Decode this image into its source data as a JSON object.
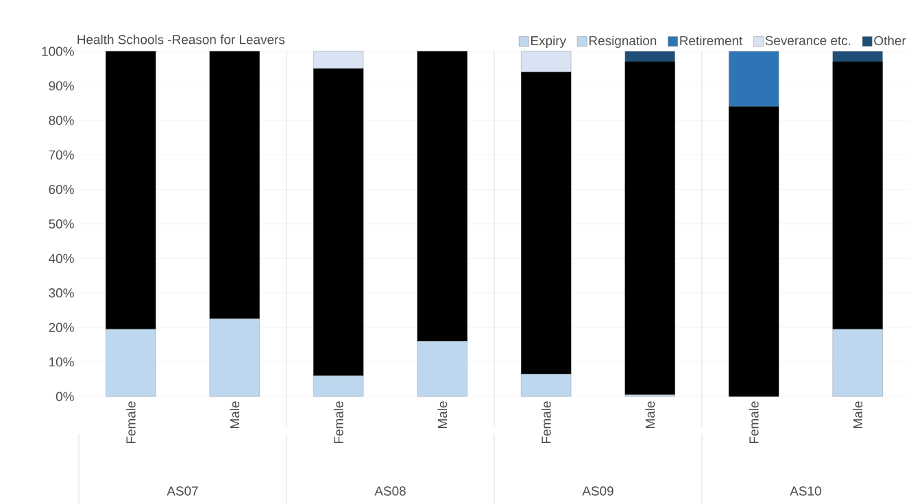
{
  "chart_data": {
    "type": "bar",
    "stacked": true,
    "title": "Health Schools -Reason for Leavers",
    "categories": [
      "Female",
      "Male",
      "Female",
      "Male",
      "Female",
      "Male",
      "Female",
      "Male"
    ],
    "annotations": [
      "AS07",
      "AS08",
      "AS09",
      "AS10"
    ],
    "series": [
      {
        "name": "Expiry",
        "color": "#bdd7ee",
        "values": [
          19.5,
          22.5,
          6,
          16,
          6.5,
          0.5,
          null,
          null
        ]
      },
      {
        "name": "Resignation",
        "color": "#bdd7ee",
        "values": [
          null,
          null,
          null,
          null,
          null,
          null,
          null,
          19.5
        ]
      },
      {
        "color": "#000000",
        "values": [
          80.5,
          77.5,
          89,
          84,
          87.5,
          96.5,
          84,
          77.5
        ]
      },
      {
        "name": "Retirement",
        "color": "#2e75b6",
        "values": [
          null,
          null,
          null,
          null,
          null,
          null,
          16,
          null
        ]
      },
      {
        "name": "Severance etc.",
        "color": "#dae3f3",
        "values": [
          null,
          null,
          5,
          null,
          6,
          null,
          null,
          null
        ]
      },
      {
        "name": "Other",
        "color": "#1f4e79",
        "values": [
          null,
          null,
          null,
          null,
          null,
          3,
          null,
          3
        ]
      }
    ],
    "ylim": [
      0,
      100
    ],
    "yticks": [
      {
        "value": 0,
        "label": "0%"
      },
      {
        "value": 10,
        "label": "10%"
      },
      {
        "value": 20,
        "label": "20%"
      },
      {
        "value": 30,
        "label": "30%"
      },
      {
        "value": 40,
        "label": "40%"
      },
      {
        "value": 50,
        "label": "50%"
      },
      {
        "value": 60,
        "label": "60%"
      },
      {
        "value": 70,
        "label": "70%"
      },
      {
        "value": 80,
        "label": "80%"
      },
      {
        "value": 90,
        "label": "90%"
      },
      {
        "value": 100,
        "label": "100%"
      }
    ],
    "grid": "y",
    "legend": "top"
  }
}
